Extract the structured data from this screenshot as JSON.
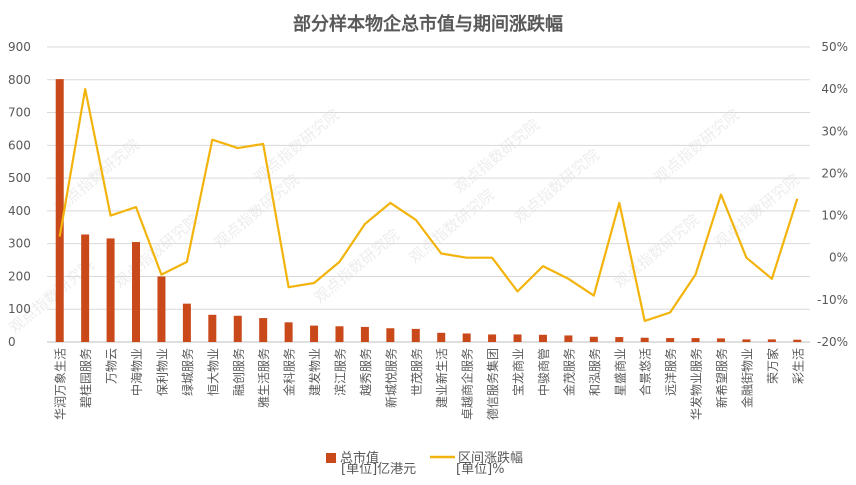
{
  "chart_data": {
    "type": "bar",
    "title": "部分样本物企总市值与期间涨跌幅",
    "categories": [
      "华润万象生活",
      "碧桂园服务",
      "万物云",
      "中海物业",
      "保利物业",
      "绿城服务",
      "恒大物业",
      "融创服务",
      "雅生活服务",
      "金科服务",
      "建发物业",
      "滨江服务",
      "越秀服务",
      "新城悦服务",
      "世茂服务",
      "建业新生活",
      "卓越商企服务",
      "德信服务集团",
      "宝龙商业",
      "中骏商管",
      "金茂服务",
      "和泓服务",
      "星盛商业",
      "合景悠活",
      "远洋服务",
      "华发物业服务",
      "新希望服务",
      "金融街物业",
      "荣万家",
      "彩生活"
    ],
    "series": [
      {
        "name": "总市值",
        "unit_label": "[单位]亿港元",
        "axis": "left",
        "color": "#c9491a",
        "values": [
          802,
          328,
          316,
          305,
          200,
          117,
          83,
          80,
          73,
          60,
          50,
          48,
          46,
          42,
          40,
          28,
          26,
          23,
          23,
          22,
          20,
          16,
          15,
          13,
          12,
          12,
          11,
          8,
          8,
          7
        ]
      },
      {
        "name": "区间涨跌幅",
        "unit_label": "[单位]%",
        "axis": "right",
        "color": "#f2b40c",
        "values": [
          5,
          40,
          10,
          12,
          -4,
          -1,
          28,
          26,
          27,
          -7,
          -6,
          -1,
          8,
          13,
          9,
          1,
          0,
          0,
          -8,
          -2,
          -5,
          -9,
          13,
          -15,
          -13,
          -4,
          15,
          0,
          -5,
          14
        ]
      }
    ],
    "y_left": {
      "min": 0,
      "max": 900,
      "ticks": [
        0,
        100,
        200,
        300,
        400,
        500,
        600,
        700,
        800,
        900
      ]
    },
    "y_right": {
      "min": -20,
      "max": 50,
      "ticks": [
        "-20%",
        "-10%",
        "0%",
        "10%",
        "20%",
        "30%",
        "40%",
        "50%"
      ],
      "tick_values": [
        -20,
        -10,
        0,
        10,
        20,
        30,
        40,
        50
      ]
    },
    "grid": true,
    "legend_position": "bottom",
    "watermark": "观点指数研究院"
  }
}
